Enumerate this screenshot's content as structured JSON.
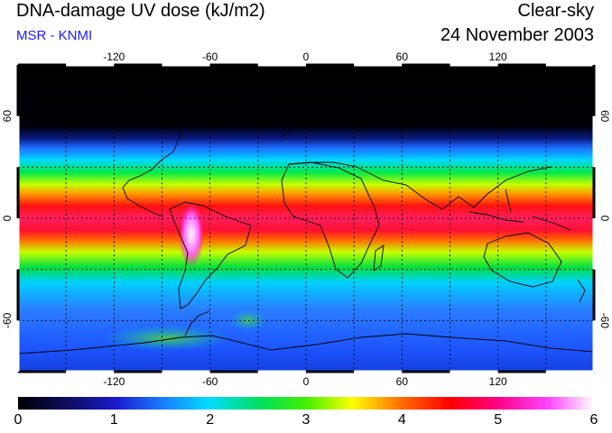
{
  "header": {
    "title": "DNA-damage UV dose (kJ/m2)",
    "subtitle": "MSR - KNMI",
    "condition": "Clear-sky",
    "date": "24 November 2003"
  },
  "map": {
    "projection": "equirectangular",
    "lon_range": [
      -180,
      180
    ],
    "lat_range": [
      -90,
      90
    ],
    "gridlines_lon": [
      -150,
      -120,
      -90,
      -60,
      -30,
      0,
      30,
      60,
      90,
      120,
      150
    ],
    "gridlines_lat": [
      -60,
      -30,
      0,
      30,
      60
    ],
    "lon_tick_labels": [
      "-120",
      "-60",
      "0",
      "60",
      "120"
    ],
    "lat_tick_labels_left": [
      "60",
      "0",
      "-60"
    ],
    "lat_tick_labels_right": [
      "60",
      "0",
      "-60"
    ],
    "grid_style": "dotted",
    "coastlines": true
  },
  "colorbar": {
    "min": 0,
    "max": 6,
    "labels": [
      "0",
      "1",
      "2",
      "3",
      "4",
      "5",
      "6"
    ],
    "colors": [
      "#000000",
      "#1a1acc",
      "#00c8ff",
      "#00e600",
      "#ffff00",
      "#ff0000",
      "#ff00aa",
      "#ffffff"
    ]
  }
}
